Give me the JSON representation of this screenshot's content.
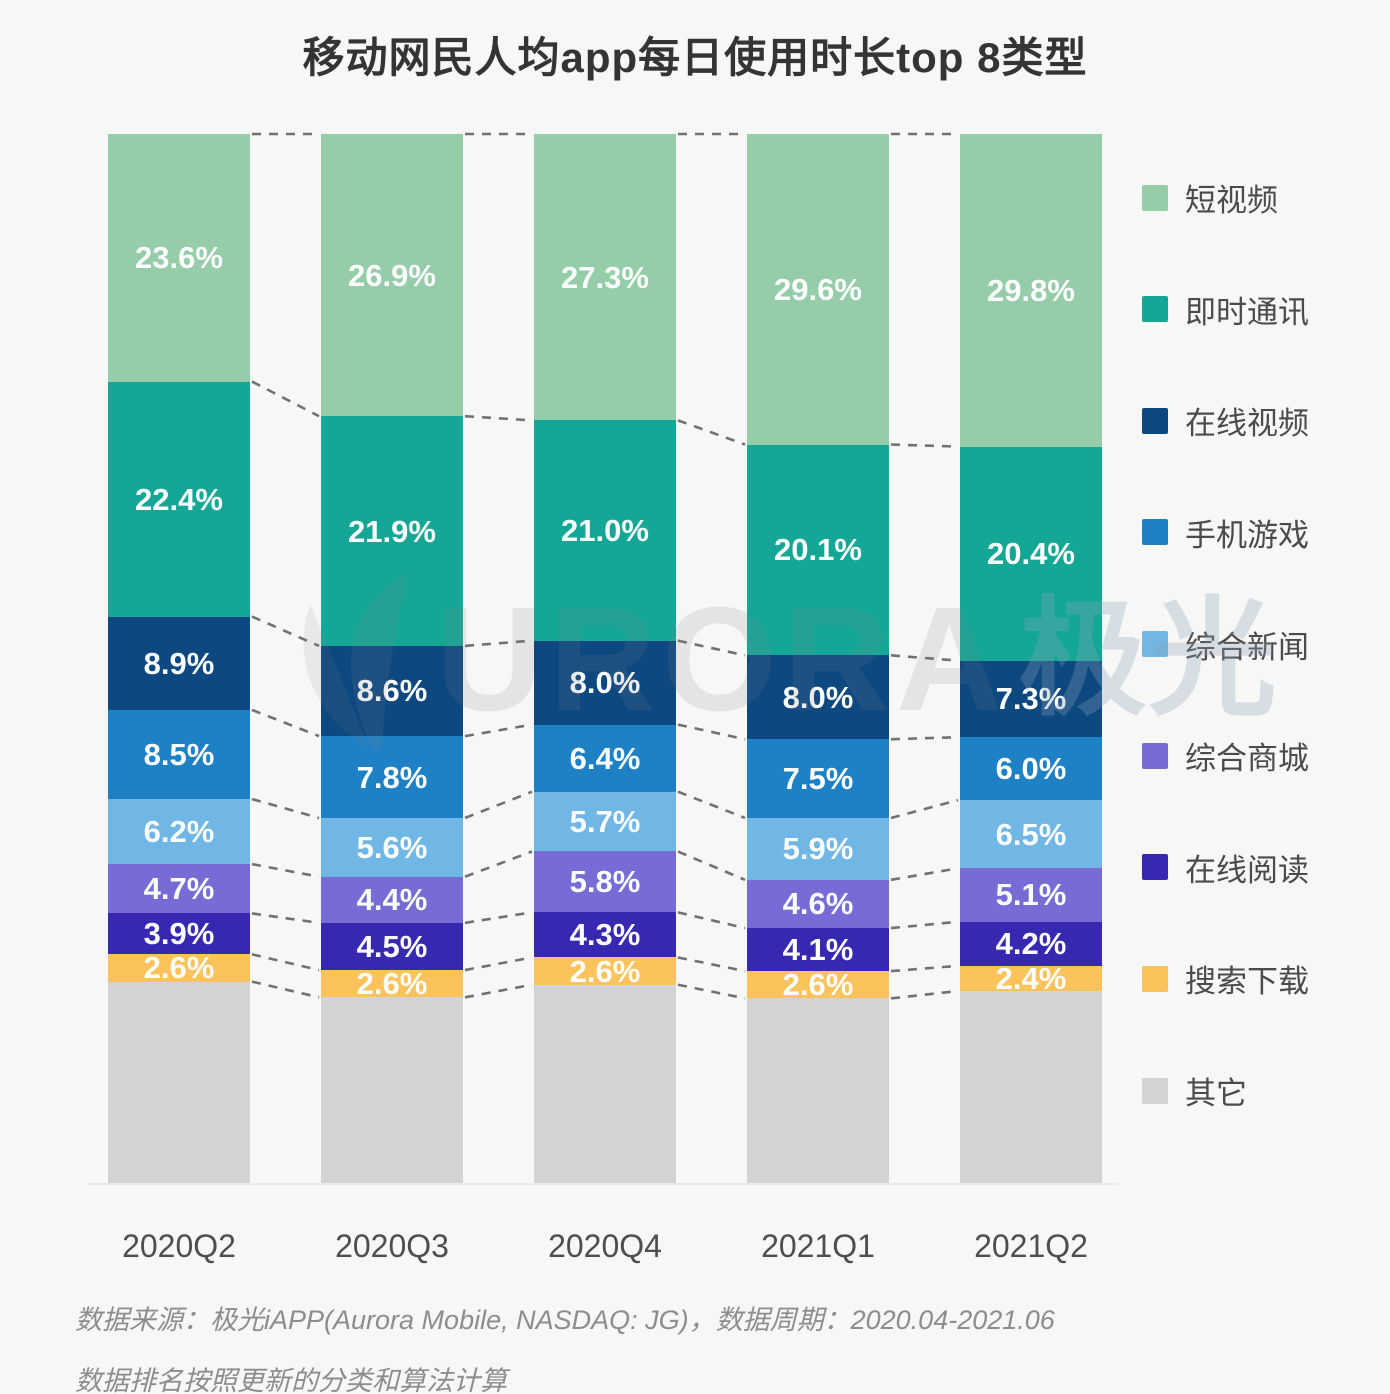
{
  "title": "移动网民人均app每日使用时长top 8类型",
  "watermark": {
    "brand_latin": "URORA",
    "brand_cn": "极光"
  },
  "chart_data": {
    "type": "bar",
    "subtype": "stacked-percentage-column",
    "unit": "%",
    "grid": false,
    "legend_position": "right",
    "categories": [
      "2020Q2",
      "2020Q3",
      "2020Q4",
      "2021Q1",
      "2021Q2"
    ],
    "series": [
      {
        "name": "短视频",
        "color": "#95cda9",
        "values": [
          23.6,
          26.9,
          27.3,
          29.6,
          29.8
        ]
      },
      {
        "name": "即时通讯",
        "color": "#15a795",
        "values": [
          22.4,
          21.9,
          21.0,
          20.1,
          20.4
        ]
      },
      {
        "name": "在线视频",
        "color": "#0d4880",
        "values": [
          8.9,
          8.6,
          8.0,
          8.0,
          7.3
        ]
      },
      {
        "name": "手机游戏",
        "color": "#1e80c5",
        "values": [
          8.5,
          7.8,
          6.4,
          7.5,
          6.0
        ]
      },
      {
        "name": "综合新闻",
        "color": "#70b7e6",
        "values": [
          6.2,
          5.6,
          5.7,
          5.9,
          6.5
        ]
      },
      {
        "name": "综合商城",
        "color": "#776bd6",
        "values": [
          4.7,
          4.4,
          5.8,
          4.6,
          5.1
        ]
      },
      {
        "name": "在线阅读",
        "color": "#3728b2",
        "values": [
          3.9,
          4.5,
          4.3,
          4.1,
          4.2
        ]
      },
      {
        "name": "搜索下载",
        "color": "#fcc25c",
        "values": [
          2.6,
          2.6,
          2.6,
          2.6,
          2.4
        ]
      }
    ],
    "other_series": {
      "name": "其它",
      "color": "#d2d3d5",
      "fills_remainder_to": 100,
      "labeled": false
    },
    "value_suffix": "%",
    "ylim": [
      0,
      100
    ]
  },
  "footer": {
    "line1": "数据来源：极光iAPP(Aurora Mobile, NASDAQ: JG)，数据周期：2020.04-2021.06",
    "line2": "数据排名按照更新的分类和算法计算"
  }
}
